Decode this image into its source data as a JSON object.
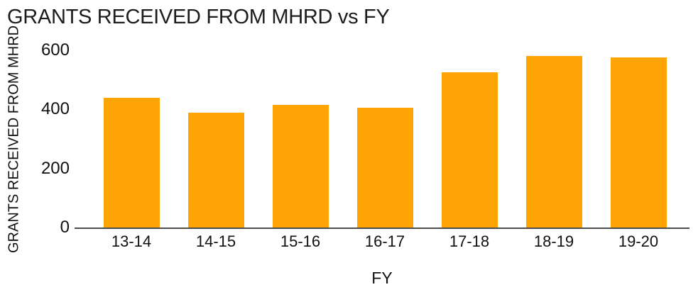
{
  "chart_data": {
    "type": "bar",
    "title": "GRANTS RECEIVED FROM MHRD vs FY",
    "xlabel": "FY",
    "ylabel": "GRANTS RECEIVED FROM MHRD",
    "categories": [
      "13-14",
      "14-15",
      "15-16",
      "16-17",
      "17-18",
      "18-19",
      "19-20"
    ],
    "values": [
      440,
      390,
      415,
      405,
      525,
      580,
      575
    ],
    "ylim": [
      0,
      600
    ],
    "yticks": [
      0,
      200,
      400,
      600
    ],
    "grid": false,
    "legend": false,
    "bar_color": "#FFA405",
    "axis_line_color": "#4D4D4D",
    "text_color": "#111111",
    "background_color": "#FFFFFF"
  }
}
